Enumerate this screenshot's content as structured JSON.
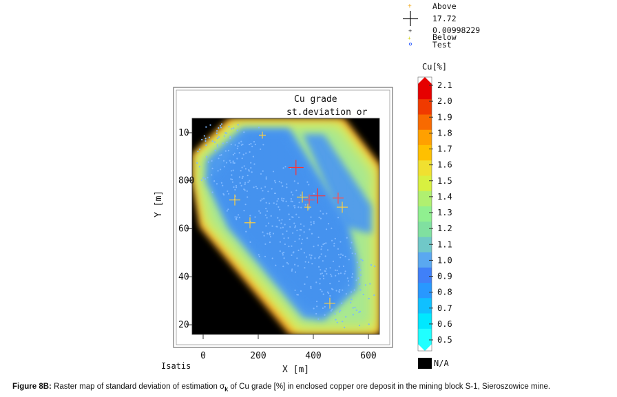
{
  "chart_data": {
    "type": "heatmap",
    "title": "Cu grade",
    "subtitle": "st.deviation or",
    "xlabel": "X [m]",
    "ylabel": "Y [m]",
    "software": "Isatis",
    "x_ticks": [
      "0",
      "200",
      "400",
      "600"
    ],
    "y_ticks": [
      "10",
      "800",
      "60",
      "40",
      "20"
    ],
    "xlim": [
      -40,
      640
    ],
    "ylim": [
      160,
      1060
    ],
    "legend_points": {
      "above_label": "Above",
      "max_value": "17.72",
      "min_value": "0.00998229",
      "below_label": "Below",
      "test_label": "Test"
    },
    "colorbar": {
      "title": "Cu[%]",
      "ticks": [
        "2.1",
        "2.0",
        "1.9",
        "1.8",
        "1.7",
        "1.6",
        "1.5",
        "1.4",
        "1.3",
        "1.2",
        "1.1",
        "1.0",
        "0.9",
        "0.8",
        "0.7",
        "0.6",
        "0.5"
      ],
      "na_label": "N/A",
      "colors": [
        "#e60000",
        "#f03a00",
        "#f86a00",
        "#ffa000",
        "#ffc000",
        "#f0e030",
        "#d8f040",
        "#b0f070",
        "#90f090",
        "#80e0a0",
        "#70c8c8",
        "#5aa8f0",
        "#4080f8",
        "#2898ff",
        "#10c0ff",
        "#00e8ff",
        "#20ffff"
      ]
    },
    "points": [
      {
        "x": 337,
        "y": 855,
        "size": "large",
        "color": "#ff3030"
      },
      {
        "x": 416,
        "y": 737,
        "size": "large",
        "color": "#ff3030"
      },
      {
        "x": 385,
        "y": 720,
        "size": "medium",
        "color": "#ff5050"
      },
      {
        "x": 490,
        "y": 728,
        "size": "medium",
        "color": "#ff5050"
      },
      {
        "x": 360,
        "y": 732,
        "size": "medium",
        "color": "#ffd040"
      },
      {
        "x": 115,
        "y": 720,
        "size": "medium",
        "color": "#ffd040"
      },
      {
        "x": 170,
        "y": 625,
        "size": "medium",
        "color": "#ffd040"
      },
      {
        "x": 505,
        "y": 690,
        "size": "medium",
        "color": "#ffd040"
      },
      {
        "x": 460,
        "y": 290,
        "size": "medium",
        "color": "#ffd040"
      },
      {
        "x": 380,
        "y": 690,
        "size": "small",
        "color": "#ffd040"
      },
      {
        "x": 215,
        "y": 990,
        "size": "small",
        "color": "#ffd040"
      }
    ],
    "colors": {
      "mask": "#000000",
      "low": "#4a90f0",
      "mid": "#a8e890",
      "edge": "#ffb000"
    }
  },
  "caption": {
    "label": "Figure 8B:",
    "text_part1": " Raster map of standard deviation of estimation σ",
    "subscript": "k",
    "text_part2": " of Cu grade [%] in enclosed copper ore deposit in the mining block S-1, Sieroszowice mine."
  }
}
